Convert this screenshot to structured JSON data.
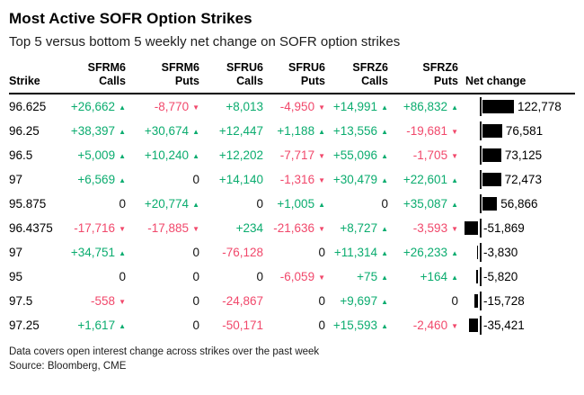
{
  "title": "Most Active SOFR Option Strikes",
  "subtitle": "Top 5 versus bottom 5 weekly net change on SOFR option strikes",
  "colors": {
    "positive": "#0bac6f",
    "negative": "#f1486b",
    "bar": "#000000"
  },
  "icons": {
    "up_arrow": "▲",
    "down_arrow": "▼"
  },
  "table": {
    "columns": [
      {
        "id": "strike",
        "line1": "",
        "line2": "Strike"
      },
      {
        "id": "sfrm6_calls",
        "line1": "SFRM6",
        "line2": "Calls"
      },
      {
        "id": "sfrm6_puts",
        "line1": "SFRM6",
        "line2": "Puts"
      },
      {
        "id": "sfru6_calls",
        "line1": "SFRU6",
        "line2": "Calls"
      },
      {
        "id": "sfru6_puts",
        "line1": "SFRU6",
        "line2": "Puts"
      },
      {
        "id": "sfrz6_calls",
        "line1": "SFRZ6",
        "line2": "Calls"
      },
      {
        "id": "sfrz6_puts",
        "line1": "SFRZ6",
        "line2": "Puts"
      },
      {
        "id": "net_change",
        "line1": "",
        "line2": "Net change"
      }
    ],
    "rows": [
      {
        "strike": "96.625",
        "cells": [
          {
            "v": "+26,662",
            "d": "up"
          },
          {
            "v": "-8,770",
            "d": "down"
          },
          {
            "v": "+8,013",
            "d": null
          },
          {
            "v": "-4,950",
            "d": "down"
          },
          {
            "v": "+14,991",
            "d": "up"
          },
          {
            "v": "+86,832",
            "d": "up"
          }
        ],
        "net": 122778,
        "net_label": "122,778"
      },
      {
        "strike": "96.25",
        "cells": [
          {
            "v": "+38,397",
            "d": "up"
          },
          {
            "v": "+30,674",
            "d": "up"
          },
          {
            "v": "+12,447",
            "d": null
          },
          {
            "v": "+1,188",
            "d": "up"
          },
          {
            "v": "+13,556",
            "d": "up"
          },
          {
            "v": "-19,681",
            "d": "down"
          }
        ],
        "net": 76581,
        "net_label": "76,581"
      },
      {
        "strike": "96.5",
        "cells": [
          {
            "v": "+5,009",
            "d": "up"
          },
          {
            "v": "+10,240",
            "d": "up"
          },
          {
            "v": "+12,202",
            "d": null
          },
          {
            "v": "-7,717",
            "d": "down"
          },
          {
            "v": "+55,096",
            "d": "up"
          },
          {
            "v": "-1,705",
            "d": "down"
          }
        ],
        "net": 73125,
        "net_label": "73,125"
      },
      {
        "strike": "97",
        "cells": [
          {
            "v": "+6,569",
            "d": "up"
          },
          {
            "v": "0",
            "d": null
          },
          {
            "v": "+14,140",
            "d": null
          },
          {
            "v": "-1,316",
            "d": "down"
          },
          {
            "v": "+30,479",
            "d": "up"
          },
          {
            "v": "+22,601",
            "d": "up"
          }
        ],
        "net": 72473,
        "net_label": "72,473"
      },
      {
        "strike": "95.875",
        "cells": [
          {
            "v": "0",
            "d": null
          },
          {
            "v": "+20,774",
            "d": "up"
          },
          {
            "v": "0",
            "d": null
          },
          {
            "v": "+1,005",
            "d": "up"
          },
          {
            "v": "0",
            "d": null
          },
          {
            "v": "+35,087",
            "d": "up"
          }
        ],
        "net": 56866,
        "net_label": "56,866"
      },
      {
        "strike": "96.4375",
        "cells": [
          {
            "v": "-17,716",
            "d": "down"
          },
          {
            "v": "-17,885",
            "d": "down"
          },
          {
            "v": "+234",
            "d": null
          },
          {
            "v": "-21,636",
            "d": "down"
          },
          {
            "v": "+8,727",
            "d": "up"
          },
          {
            "v": "-3,593",
            "d": "down"
          }
        ],
        "net": -51869,
        "net_label": "-51,869"
      },
      {
        "strike": "97",
        "cells": [
          {
            "v": "+34,751",
            "d": "up"
          },
          {
            "v": "0",
            "d": null
          },
          {
            "v": "-76,128",
            "d": null
          },
          {
            "v": "0",
            "d": null
          },
          {
            "v": "+11,314",
            "d": "up"
          },
          {
            "v": "+26,233",
            "d": "up"
          }
        ],
        "net": -3830,
        "net_label": "-3,830"
      },
      {
        "strike": "95",
        "cells": [
          {
            "v": "0",
            "d": null
          },
          {
            "v": "0",
            "d": null
          },
          {
            "v": "0",
            "d": null
          },
          {
            "v": "-6,059",
            "d": "down"
          },
          {
            "v": "+75",
            "d": "up"
          },
          {
            "v": "+164",
            "d": "up"
          }
        ],
        "net": -5820,
        "net_label": "-5,820"
      },
      {
        "strike": "97.5",
        "cells": [
          {
            "v": "-558",
            "d": "down"
          },
          {
            "v": "0",
            "d": null
          },
          {
            "v": "-24,867",
            "d": null
          },
          {
            "v": "0",
            "d": null
          },
          {
            "v": "+9,697",
            "d": "up"
          },
          {
            "v": "0",
            "d": null
          }
        ],
        "net": -15728,
        "net_label": "-15,728"
      },
      {
        "strike": "97.25",
        "cells": [
          {
            "v": "+1,617",
            "d": "up"
          },
          {
            "v": "0",
            "d": null
          },
          {
            "v": "-50,171",
            "d": null
          },
          {
            "v": "0",
            "d": null
          },
          {
            "v": "+15,593",
            "d": "up"
          },
          {
            "v": "-2,460",
            "d": "down"
          }
        ],
        "net": -35421,
        "net_label": "-35,421"
      }
    ]
  },
  "footer": {
    "line1": "Data covers open interest change across strikes over the past week",
    "line2": "Source: Bloomberg, CME"
  },
  "chart_data": {
    "type": "table",
    "title": "Most Active SOFR Option Strikes",
    "subtitle": "Top 5 versus bottom 5 weekly net change on SOFR option strikes",
    "columns": [
      "Strike",
      "SFRM6 Calls",
      "SFRM6 Puts",
      "SFRU6 Calls",
      "SFRU6 Puts",
      "SFRZ6 Calls",
      "SFRZ6 Puts",
      "Net change"
    ],
    "rows": [
      [
        "96.625",
        26662,
        -8770,
        8013,
        -4950,
        14991,
        86832,
        122778
      ],
      [
        "96.25",
        38397,
        30674,
        12447,
        1188,
        13556,
        -19681,
        76581
      ],
      [
        "96.5",
        5009,
        10240,
        12202,
        -7717,
        55096,
        -1705,
        73125
      ],
      [
        "97",
        6569,
        0,
        14140,
        -1316,
        30479,
        22601,
        72473
      ],
      [
        "95.875",
        0,
        20774,
        0,
        1005,
        0,
        35087,
        56866
      ],
      [
        "96.4375",
        -17716,
        -17885,
        234,
        -21636,
        8727,
        -3593,
        -51869
      ],
      [
        "97",
        34751,
        0,
        -76128,
        0,
        11314,
        26233,
        -3830
      ],
      [
        "95",
        0,
        0,
        0,
        -6059,
        75,
        164,
        -5820
      ],
      [
        "97.5",
        -558,
        0,
        -24867,
        0,
        9697,
        0,
        -15728
      ],
      [
        "97.25",
        1617,
        0,
        -50171,
        0,
        15593,
        -2460,
        -35421
      ]
    ],
    "bar_column": "Net change",
    "bar_style": "black horizontal bars from zero baseline; negative values extend left of baseline",
    "value_colors": "positive values green with up triangle, negative values pink with down triangle, zeros black"
  }
}
